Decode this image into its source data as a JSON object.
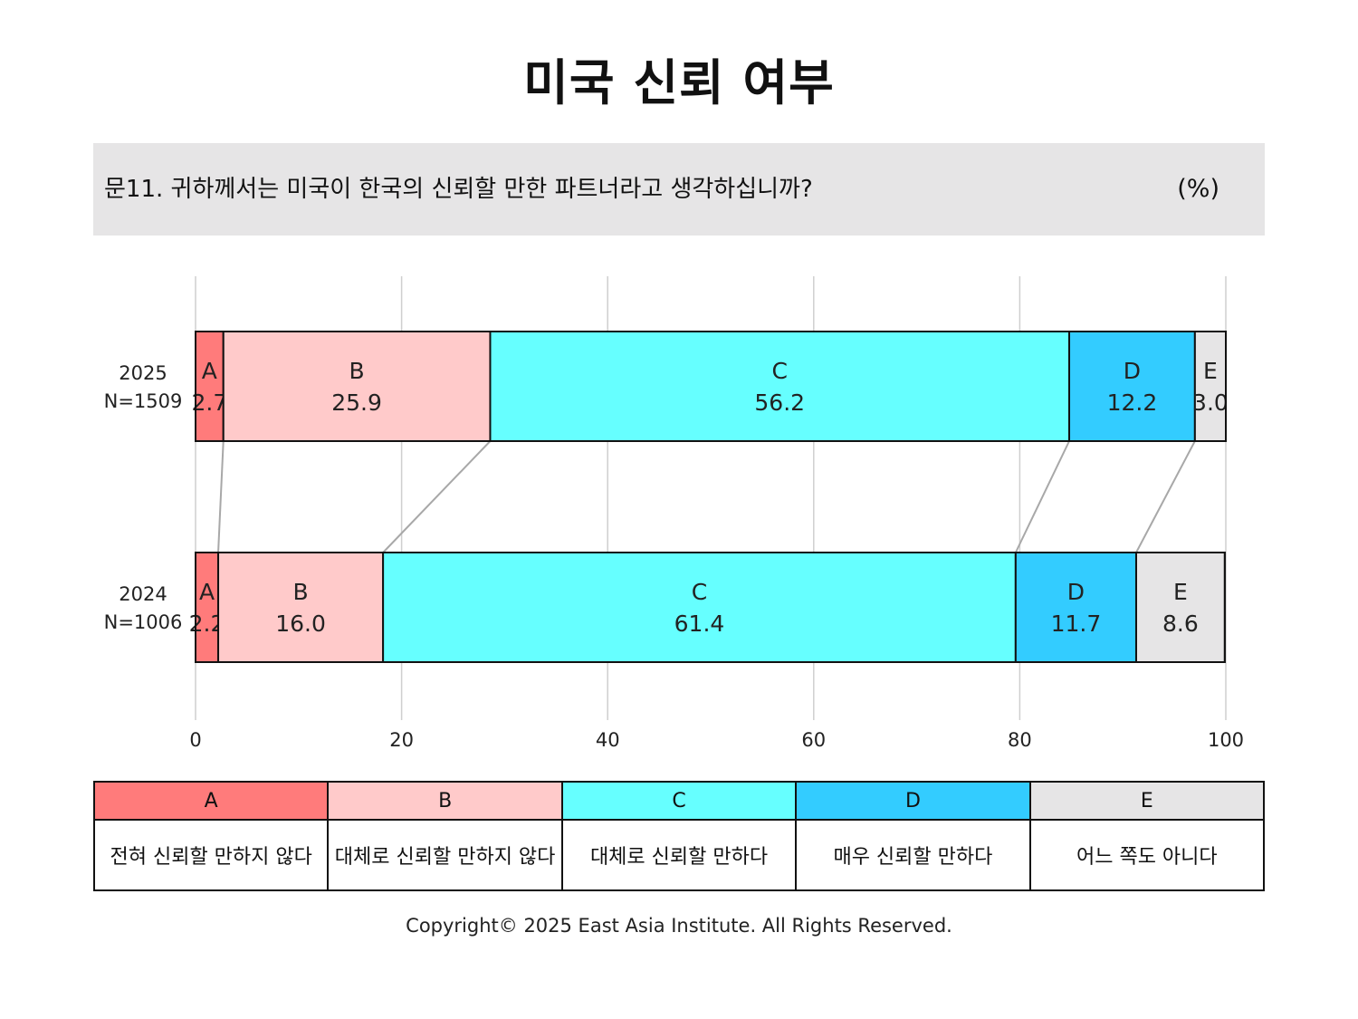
{
  "title": "미국 신뢰 여부",
  "question": "문11. 귀하께서는 미국이 한국의 신뢰할 만한 파트너라고 생각하십니까?",
  "unit": "(%)",
  "chart_data": {
    "type": "bar",
    "orientation": "horizontal",
    "stacked": true,
    "categories": [
      "2025\nN=1509",
      "2024\nN=1006"
    ],
    "category_labels": [
      {
        "year": "2025",
        "n": "N=1509"
      },
      {
        "year": "2024",
        "n": "N=1006"
      }
    ],
    "series": [
      {
        "name": "A",
        "values": [
          2.7,
          2.2
        ],
        "color": "#ff7b7b"
      },
      {
        "name": "B",
        "values": [
          25.9,
          16.0
        ],
        "color": "#ffcaca"
      },
      {
        "name": "C",
        "values": [
          56.2,
          61.4
        ],
        "color": "#66ffff"
      },
      {
        "name": "D",
        "values": [
          12.2,
          11.7
        ],
        "color": "#33ccff"
      },
      {
        "name": "E",
        "values": [
          3.0,
          8.6
        ],
        "color": "#e6e5e6"
      }
    ],
    "xlim": [
      0,
      100
    ],
    "xticks": [
      "0",
      "20",
      "40",
      "60",
      "80",
      "100"
    ],
    "grid": true,
    "connector_lines": true
  },
  "legend": [
    {
      "key": "A",
      "label": "전혀 신뢰할 만하지 않다",
      "color": "#ff7b7b"
    },
    {
      "key": "B",
      "label": "대체로 신뢰할 만하지 않다",
      "color": "#ffcaca"
    },
    {
      "key": "C",
      "label": "대체로 신뢰할 만하다",
      "color": "#66ffff"
    },
    {
      "key": "D",
      "label": "매우 신뢰할 만하다",
      "color": "#33ccff"
    },
    {
      "key": "E",
      "label": "어느 쪽도 아니다",
      "color": "#e6e5e6"
    }
  ],
  "copyright": "Copyright© 2025 East Asia Institute. All Rights Reserved."
}
